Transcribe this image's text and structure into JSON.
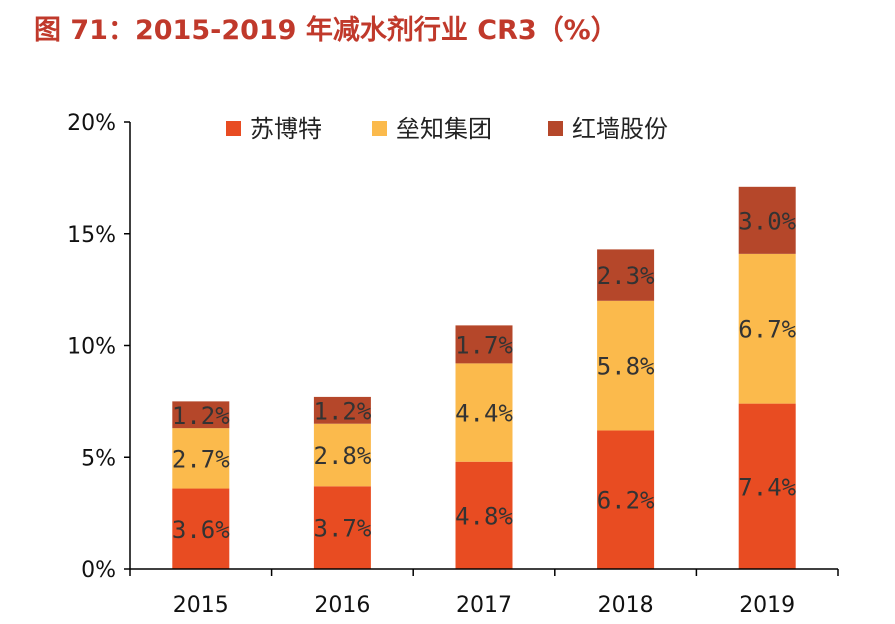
{
  "title": "图 71：2015-2019 年减水剂行业 CR3（%）",
  "colors": {
    "title": "#c0392b",
    "axis": "#000000",
    "series": [
      "#e84c22",
      "#fbba4c",
      "#b5472a"
    ]
  },
  "chart_data": {
    "type": "bar",
    "stacked": true,
    "title": "",
    "xlabel": "",
    "ylabel": "",
    "categories": [
      "2015",
      "2016",
      "2017",
      "2018",
      "2019"
    ],
    "ylim": [
      0,
      20
    ],
    "yticks": [
      0,
      5,
      10,
      15,
      20
    ],
    "ytick_labels": [
      "0%",
      "5%",
      "10%",
      "15%",
      "20%"
    ],
    "legend_position": "top",
    "grid": false,
    "series": [
      {
        "name": "苏博特",
        "values": [
          3.6,
          3.7,
          4.8,
          6.2,
          7.4
        ],
        "labels": [
          "3.6%",
          "3.7%",
          "4.8%",
          "6.2%",
          "7.4%"
        ]
      },
      {
        "name": "垒知集团",
        "values": [
          2.7,
          2.8,
          4.4,
          5.8,
          6.7
        ],
        "labels": [
          "2.7%",
          "2.8%",
          "4.4%",
          "5.8%",
          "6.7%"
        ]
      },
      {
        "name": "红墙股份",
        "values": [
          1.2,
          1.2,
          1.7,
          2.3,
          3.0
        ],
        "labels": [
          "1.2%",
          "1.2%",
          "1.7%",
          "2.3%",
          "3.0%"
        ]
      }
    ]
  }
}
